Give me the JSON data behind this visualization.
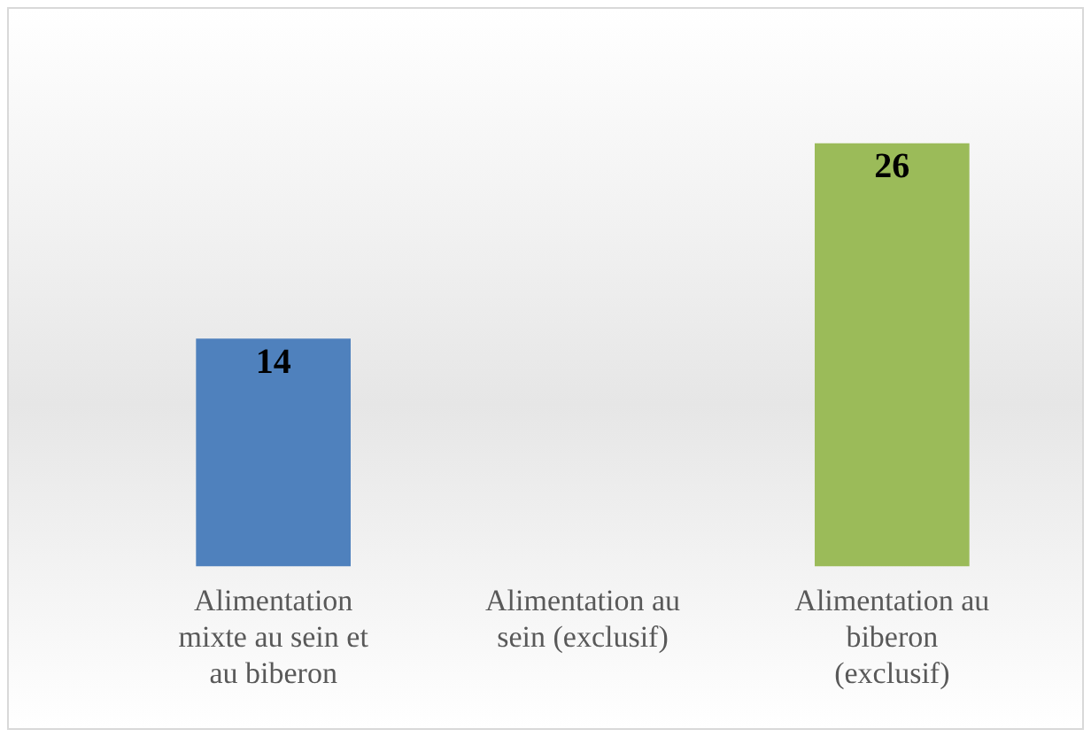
{
  "chart_data": {
    "type": "bar",
    "categories": [
      "Alimentation mixte au sein et au biberon",
      "Alimentation au sein (exclusif)",
      "Alimentation au biberon (exclusif)"
    ],
    "values": [
      14,
      0,
      26
    ],
    "colors": [
      "#4f81bd",
      "#c0504d",
      "#9bbb59"
    ],
    "value_labels": [
      "14",
      null,
      "26"
    ],
    "tick_labels": "x",
    "grid": false,
    "legend": false
  }
}
